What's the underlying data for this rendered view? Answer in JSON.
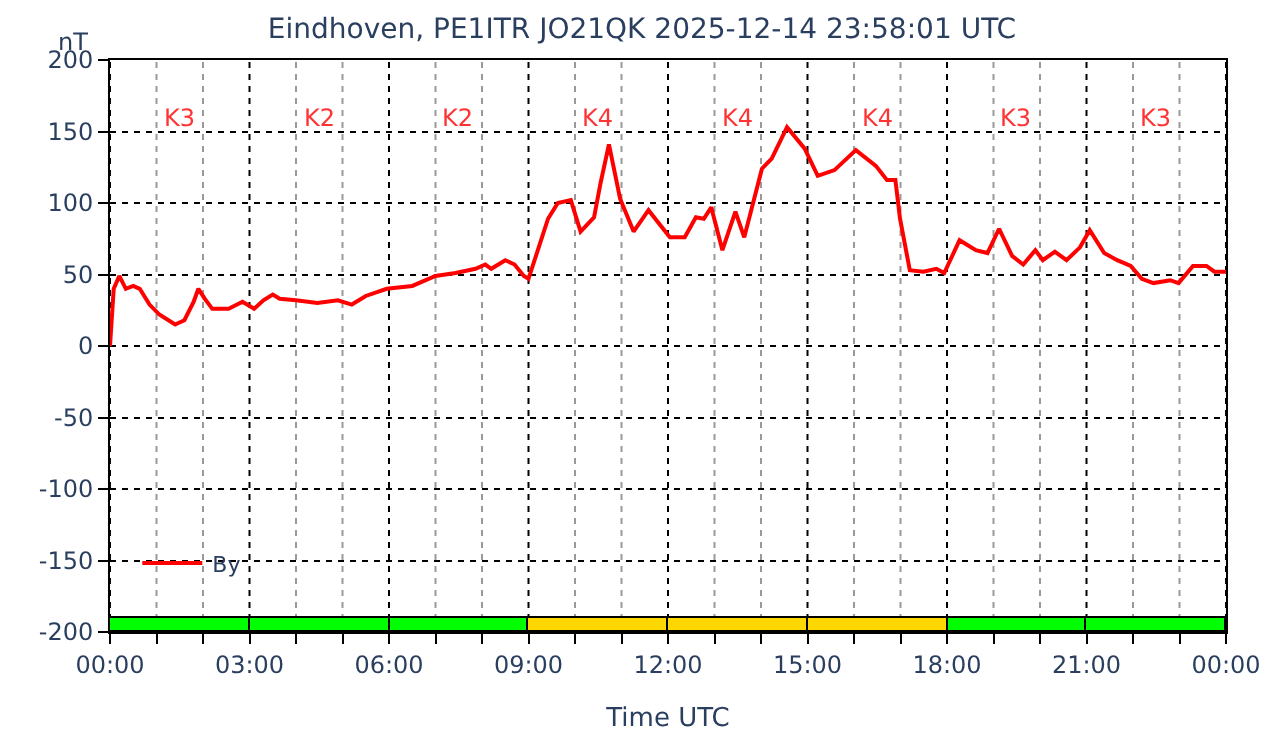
{
  "chart_data": {
    "type": "line",
    "title": "Eindhoven, PE1ITR JO21QK 2025-12-14 23:58:01 UTC",
    "xlabel": "Time UTC",
    "ylabel": "nT",
    "x": [
      0,
      0.08,
      0.2,
      0.34,
      0.5,
      0.64,
      0.85,
      1.06,
      1.4,
      1.6,
      1.8,
      1.9,
      2.04,
      2.2,
      2.55,
      2.85,
      3.1,
      3.3,
      3.5,
      3.65,
      4.0,
      4.46,
      4.9,
      5.2,
      5.5,
      5.95,
      6.5,
      7.0,
      7.43,
      7.86,
      8.07,
      8.2,
      8.5,
      8.7,
      8.9,
      9.0,
      9.42,
      9.63,
      9.91,
      10.12,
      10.41,
      10.55,
      10.73,
      10.97,
      11.26,
      11.58,
      12.04,
      12.36,
      12.6,
      12.77,
      12.93,
      13.17,
      13.45,
      13.64,
      14.02,
      14.23,
      14.56,
      14.94,
      15.22,
      15.58,
      16.04,
      16.47,
      16.71,
      16.89,
      16.99,
      17.2,
      17.49,
      17.77,
      17.94,
      18.27,
      18.62,
      18.87,
      19.12,
      19.4,
      19.64,
      19.9,
      20.06,
      20.32,
      20.57,
      20.86,
      21.07,
      21.38,
      21.66,
      21.95,
      22.19,
      22.44,
      22.8,
      22.98,
      23.29,
      23.58,
      23.75,
      24
    ],
    "series": [
      {
        "type": "bar",
        "x": [
          1.5,
          4.5,
          7.5,
          10.5,
          13.5,
          16.5,
          19.5,
          22.5
        ],
        "base": [
          -200,
          -200,
          -200,
          -200,
          -200,
          -200,
          -200,
          -200
        ],
        "values": [
          10,
          10,
          10,
          10,
          10,
          10,
          10,
          10
        ],
        "colors": [
          "#00ff00",
          "#00ff00",
          "#00ff00",
          "#ffd700",
          "#ffd700",
          "#ffd700",
          "#00ff00",
          "#00ff00"
        ]
      },
      {
        "name": "By",
        "color": "#ff0000",
        "values": [
          0,
          40,
          49,
          40,
          42,
          40,
          29,
          22,
          15,
          18,
          31,
          40,
          33,
          26,
          26,
          31,
          26,
          32,
          36,
          33,
          32,
          30,
          32,
          29,
          35,
          40,
          42,
          49,
          51,
          54,
          57,
          54,
          60,
          57,
          49,
          47,
          89,
          100,
          102,
          80,
          90,
          114,
          141,
          103,
          80,
          95,
          76,
          76,
          90,
          89,
          97,
          67,
          94,
          76,
          124,
          131,
          153,
          138,
          119,
          123,
          137,
          126,
          116,
          116,
          89,
          53,
          52,
          54,
          51,
          74,
          67,
          65,
          82,
          63,
          57,
          67,
          60,
          66,
          60,
          69,
          81,
          65,
          60,
          56,
          47,
          44,
          46,
          44,
          56,
          56,
          52,
          52
        ]
      }
    ],
    "xlim": [
      0,
      24
    ],
    "ylim": [
      -200,
      200
    ],
    "xticks": [
      {
        "value": 0,
        "label": "00:00"
      },
      {
        "value": 1,
        "label": null
      },
      {
        "value": 2,
        "label": null
      },
      {
        "value": 3,
        "label": "03:00"
      },
      {
        "value": 4,
        "label": null
      },
      {
        "value": 5,
        "label": null
      },
      {
        "value": 6,
        "label": "06:00"
      },
      {
        "value": 7,
        "label": null
      },
      {
        "value": 8,
        "label": null
      },
      {
        "value": 9,
        "label": "09:00"
      },
      {
        "value": 10,
        "label": null
      },
      {
        "value": 11,
        "label": null
      },
      {
        "value": 12,
        "label": "12:00"
      },
      {
        "value": 13,
        "label": null
      },
      {
        "value": 14,
        "label": null
      },
      {
        "value": 15,
        "label": "15:00"
      },
      {
        "value": 16,
        "label": null
      },
      {
        "value": 17,
        "label": null
      },
      {
        "value": 18,
        "label": "18:00"
      },
      {
        "value": 19,
        "label": null
      },
      {
        "value": 20,
        "label": null
      },
      {
        "value": 21,
        "label": "21:00"
      },
      {
        "value": 22,
        "label": null
      },
      {
        "value": 23,
        "label": null
      },
      {
        "value": 24,
        "label": "00:00"
      }
    ],
    "yticks": [
      -200,
      -150,
      -100,
      -50,
      0,
      50,
      100,
      150,
      200
    ],
    "annotations": [
      "K3",
      "K2",
      "K2",
      "K4",
      "K4",
      "K4",
      "K3",
      "K3"
    ],
    "grid": true,
    "legend": "bottom left",
    "marker": "none",
    "line_style": "solid"
  }
}
